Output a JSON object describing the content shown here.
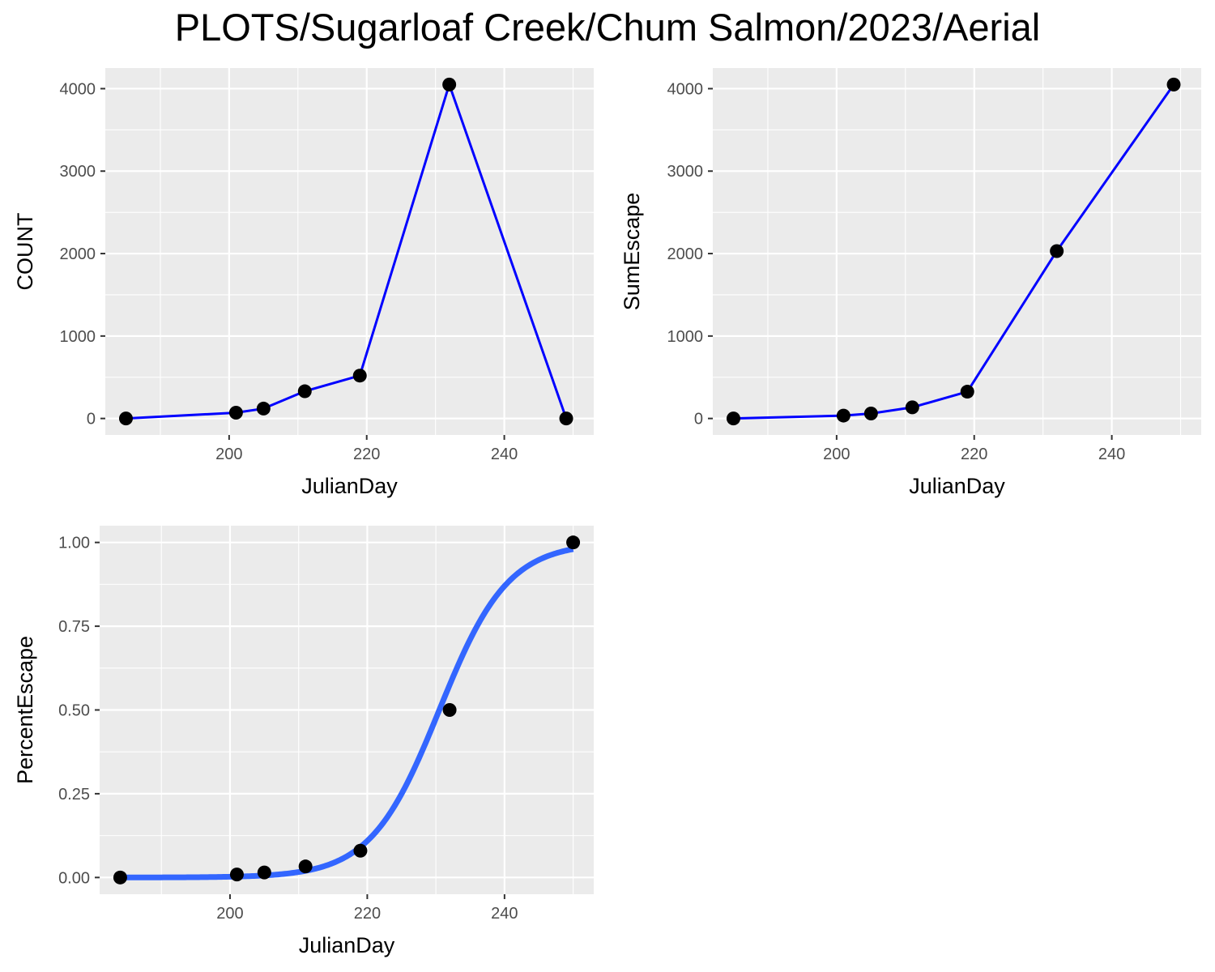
{
  "title": "PLOTS/Sugarloaf Creek/Chum Salmon/2023/Aerial",
  "colors": {
    "panel_bg": "#ebebeb",
    "grid": "#ffffff",
    "line": "#0000ff",
    "smooth": "#3366ff",
    "point": "#000000",
    "tick_text": "#4d4d4d"
  },
  "chart_data": [
    {
      "type": "line",
      "xlabel": "JulianDay",
      "ylabel": "COUNT",
      "xlim": [
        182,
        253
      ],
      "ylim": [
        -200,
        4250
      ],
      "x_ticks": [
        200,
        220,
        240
      ],
      "y_ticks": [
        0,
        1000,
        2000,
        3000,
        4000
      ],
      "y_tick_labels": [
        "0",
        "1000",
        "2000",
        "3000",
        "4000"
      ],
      "x": [
        185,
        201,
        205,
        211,
        219,
        232,
        249
      ],
      "y": [
        0,
        70,
        120,
        330,
        520,
        4050,
        0
      ],
      "grid": true,
      "show_line": true,
      "show_points": true
    },
    {
      "type": "line",
      "xlabel": "JulianDay",
      "ylabel": "SumEscape",
      "xlim": [
        182,
        253
      ],
      "ylim": [
        -200,
        4250
      ],
      "x_ticks": [
        200,
        220,
        240
      ],
      "y_ticks": [
        0,
        1000,
        2000,
        3000,
        4000
      ],
      "y_tick_labels": [
        "0",
        "1000",
        "2000",
        "3000",
        "4000"
      ],
      "x": [
        185,
        201,
        205,
        211,
        219,
        232,
        249
      ],
      "y": [
        0,
        35,
        60,
        135,
        325,
        2030,
        4050
      ],
      "grid": true,
      "show_line": true,
      "show_points": true
    },
    {
      "type": "scatter",
      "xlabel": "JulianDay",
      "ylabel": "PercentEscape",
      "xlim": [
        181,
        253
      ],
      "ylim": [
        -0.05,
        1.05
      ],
      "x_ticks": [
        200,
        220,
        240
      ],
      "y_ticks": [
        0,
        0.25,
        0.5,
        0.75,
        1.0
      ],
      "y_tick_labels": [
        "0.00",
        "0.25",
        "0.50",
        "0.75",
        "1.00"
      ],
      "x": [
        184,
        201,
        205,
        211,
        219,
        232,
        250
      ],
      "y": [
        0.0,
        0.009,
        0.015,
        0.033,
        0.08,
        0.5,
        1.0
      ],
      "grid": true,
      "show_line": false,
      "show_points": true,
      "fit": {
        "type": "logistic",
        "midpoint": 230.5,
        "scale": 5.0,
        "x_range": [
          184,
          250
        ]
      }
    }
  ]
}
